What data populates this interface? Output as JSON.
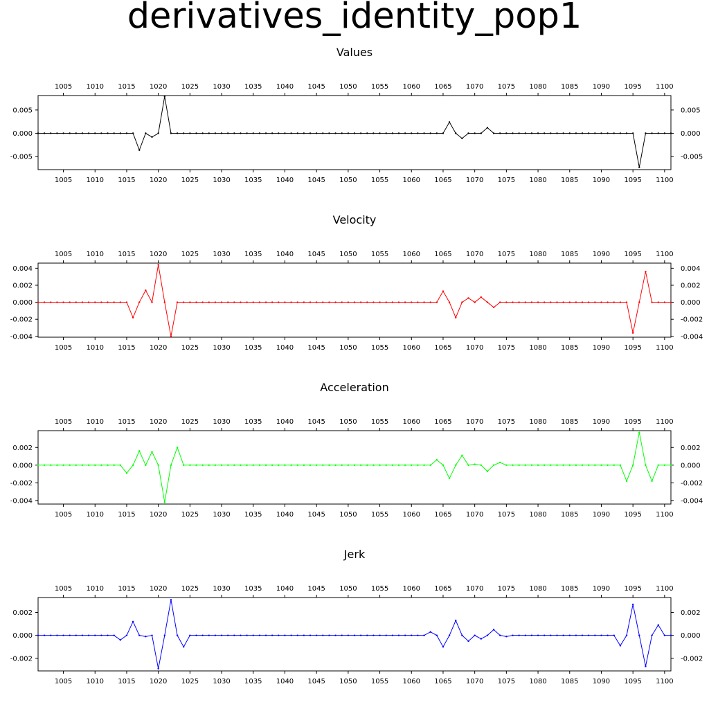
{
  "title": "derivatives_identity_pop1",
  "chart_data": [
    {
      "type": "line",
      "title": "Values",
      "color": "#000000",
      "x_start": 1001,
      "x_end": 1101,
      "xlim": [
        1001,
        1101
      ],
      "ylim": [
        -0.0078,
        0.0081
      ],
      "x_ticks": [
        1005,
        1010,
        1015,
        1020,
        1025,
        1030,
        1035,
        1040,
        1045,
        1050,
        1055,
        1060,
        1065,
        1070,
        1075,
        1080,
        1085,
        1090,
        1095,
        1100
      ],
      "y_ticks": [
        -0.005,
        0.0,
        0.005
      ],
      "y_tick_labels": [
        "-0.005",
        "0.000",
        "0.005"
      ],
      "grid": false,
      "nonzero": [
        [
          1017,
          -0.0036
        ],
        [
          1019,
          -0.0008
        ],
        [
          1021,
          0.0079
        ],
        [
          1066,
          0.0024
        ],
        [
          1068,
          -0.0011
        ],
        [
          1072,
          0.0012
        ],
        [
          1096,
          -0.0073
        ]
      ],
      "note": ""
    },
    {
      "type": "line",
      "title": "Velocity",
      "color": "#ff0000",
      "x_start": 1001,
      "x_end": 1101,
      "xlim": [
        1001,
        1101
      ],
      "ylim": [
        -0.0041,
        0.0046
      ],
      "x_ticks": [
        1005,
        1010,
        1015,
        1020,
        1025,
        1030,
        1035,
        1040,
        1045,
        1050,
        1055,
        1060,
        1065,
        1070,
        1075,
        1080,
        1085,
        1090,
        1095,
        1100
      ],
      "y_ticks": [
        -0.004,
        -0.002,
        0.0,
        0.002,
        0.004
      ],
      "y_tick_labels": [
        "-0.004",
        "-0.002",
        "0.000",
        "0.002",
        "0.004"
      ],
      "grid": false,
      "nonzero": [
        [
          1016,
          -0.0018
        ],
        [
          1018,
          0.0014
        ],
        [
          1020,
          0.0044
        ],
        [
          1022,
          -0.004
        ],
        [
          1065,
          0.0013
        ],
        [
          1067,
          -0.0018
        ],
        [
          1069,
          0.0005
        ],
        [
          1071,
          0.0006
        ],
        [
          1073,
          -0.0006
        ],
        [
          1095,
          -0.0036
        ],
        [
          1097,
          0.0036
        ]
      ],
      "note": ""
    },
    {
      "type": "line",
      "title": "Acceleration",
      "color": "#00ff00",
      "x_start": 1001,
      "x_end": 1101,
      "xlim": [
        1001,
        1101
      ],
      "ylim": [
        -0.0044,
        0.0039
      ],
      "x_ticks": [
        1005,
        1010,
        1015,
        1020,
        1025,
        1030,
        1035,
        1040,
        1045,
        1050,
        1055,
        1060,
        1065,
        1070,
        1075,
        1080,
        1085,
        1090,
        1095,
        1100
      ],
      "y_ticks": [
        -0.004,
        -0.002,
        0.0,
        0.002
      ],
      "y_tick_labels": [
        "-0.004",
        "-0.002",
        "0.000",
        "0.002"
      ],
      "grid": false,
      "nonzero": [
        [
          1015,
          -0.0009
        ],
        [
          1017,
          0.0016
        ],
        [
          1019,
          0.0015
        ],
        [
          1021,
          -0.0042
        ],
        [
          1023,
          0.002
        ],
        [
          1064,
          0.0006
        ],
        [
          1066,
          -0.0015
        ],
        [
          1068,
          0.0011
        ],
        [
          1070,
          0.0001
        ],
        [
          1072,
          -0.0007
        ],
        [
          1074,
          0.0003
        ],
        [
          1094,
          -0.0018
        ],
        [
          1096,
          0.0037
        ],
        [
          1098,
          -0.0018
        ]
      ],
      "note": ""
    },
    {
      "type": "line",
      "title": "Jerk",
      "color": "#0000ff",
      "x_start": 1001,
      "x_end": 1101,
      "xlim": [
        1001,
        1101
      ],
      "ylim": [
        -0.0031,
        0.0033
      ],
      "x_ticks": [
        1005,
        1010,
        1015,
        1020,
        1025,
        1030,
        1035,
        1040,
        1045,
        1050,
        1055,
        1060,
        1065,
        1070,
        1075,
        1080,
        1085,
        1090,
        1095,
        1100
      ],
      "y_ticks": [
        -0.002,
        0.0,
        0.002
      ],
      "y_tick_labels": [
        "-0.002",
        "0.000",
        "0.002"
      ],
      "grid": false,
      "nonzero": [
        [
          1014,
          -0.0004
        ],
        [
          1016,
          0.0012
        ],
        [
          1018,
          -0.0001
        ],
        [
          1020,
          -0.0029
        ],
        [
          1022,
          0.0031
        ],
        [
          1024,
          -0.001
        ],
        [
          1063,
          0.0003
        ],
        [
          1065,
          -0.001
        ],
        [
          1067,
          0.0013
        ],
        [
          1069,
          -0.0005
        ],
        [
          1071,
          -0.0003
        ],
        [
          1073,
          0.0005
        ],
        [
          1075,
          -0.0001
        ],
        [
          1093,
          -0.0009
        ],
        [
          1095,
          0.0027
        ],
        [
          1097,
          -0.0027
        ],
        [
          1099,
          0.0009
        ]
      ],
      "note": ""
    }
  ]
}
